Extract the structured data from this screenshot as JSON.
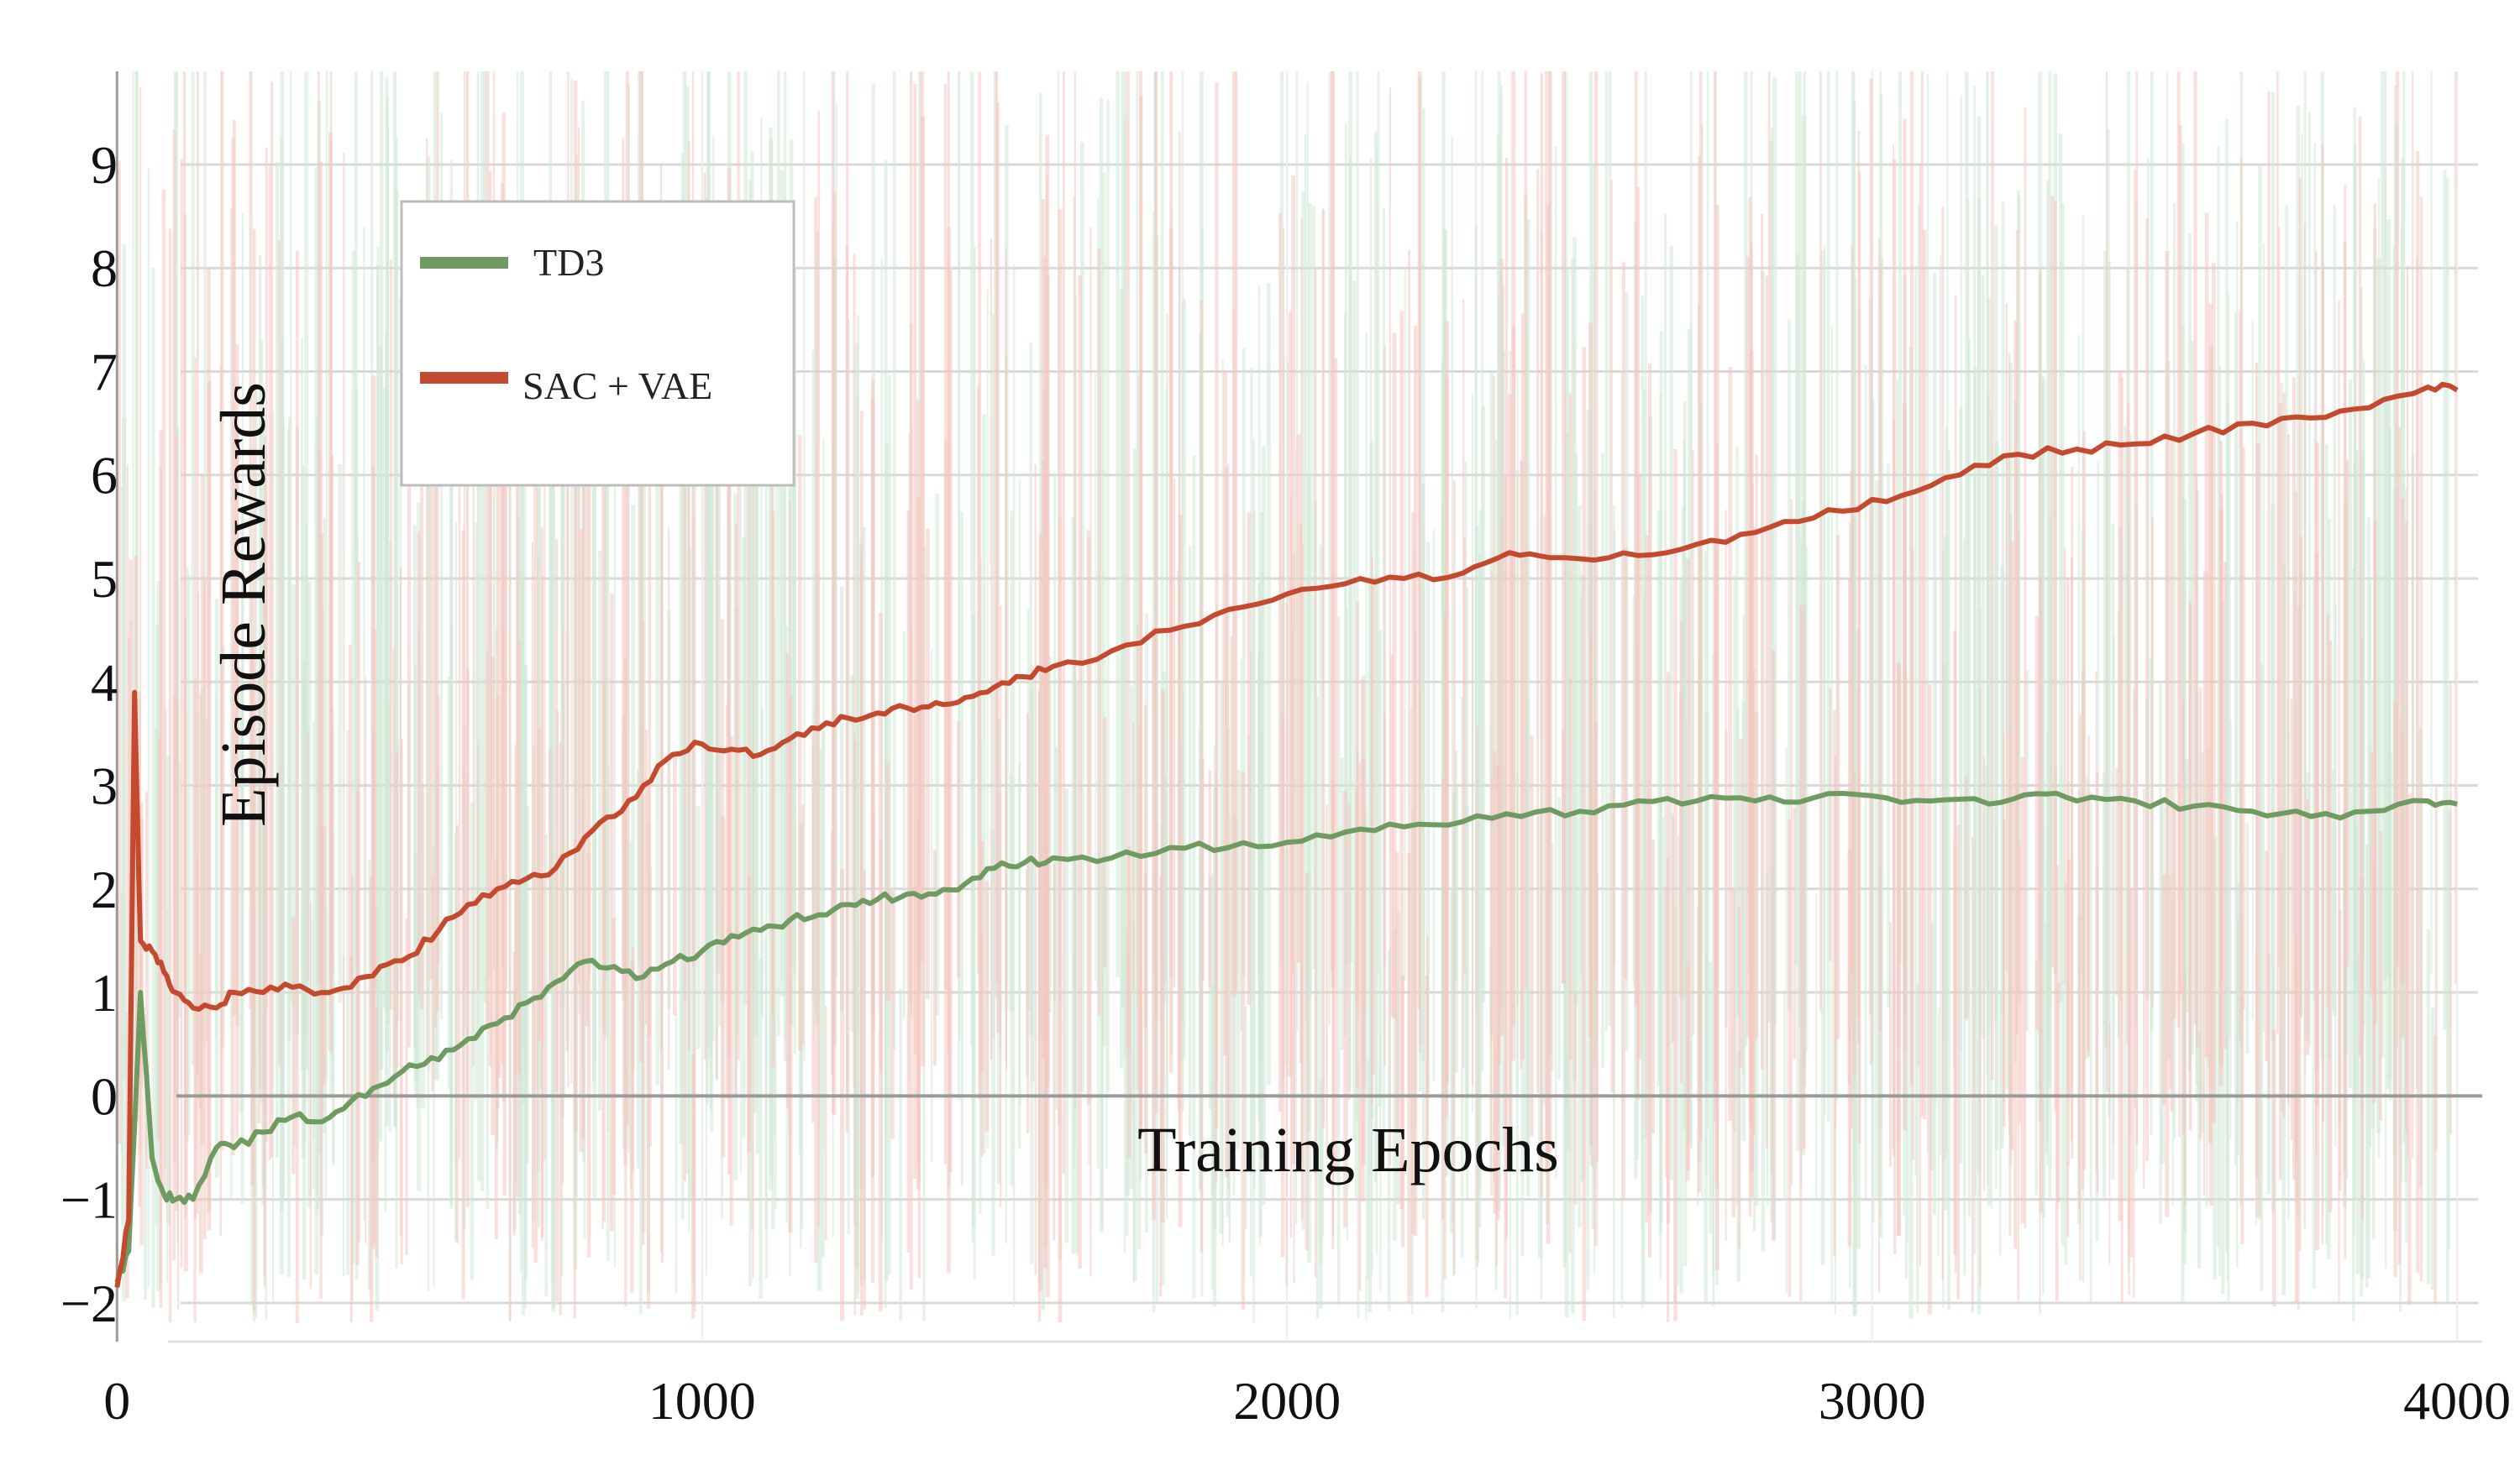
{
  "chart_data": {
    "type": "line",
    "title": "",
    "xlabel": "Training Epochs",
    "ylabel": "Episode Rewards",
    "xlim": [
      -200,
      4050
    ],
    "ylim": [
      -2.35,
      9.9
    ],
    "xticks": [
      0,
      1000,
      2000,
      3000,
      4000
    ],
    "xtick_labels": [
      "0",
      "1000",
      "2000",
      "3000",
      "4000"
    ],
    "yticks": [
      -2,
      -1,
      0,
      1,
      2,
      3,
      4,
      5,
      6,
      7,
      8,
      9
    ],
    "ytick_labels": [
      "−2",
      "−1",
      "0",
      "1",
      "2",
      "3",
      "4",
      "5",
      "6",
      "7",
      "8",
      "9"
    ],
    "grid": true,
    "legend_position": "top-left",
    "colors": {
      "td3": "#6f9a62",
      "sac_vae": "#c44a2f",
      "td3_raw": "#cfe8d6",
      "sac_vae_raw": "#f4c7c0",
      "grid": "#d9d9d9",
      "zero_line": "#9a9a9a"
    },
    "series": [
      {
        "name": "TD3",
        "x": [
          0,
          20,
          40,
          60,
          80,
          100,
          130,
          170,
          200,
          250,
          300,
          350,
          400,
          450,
          500,
          550,
          600,
          650,
          700,
          750,
          800,
          850,
          900,
          950,
          1000,
          1050,
          1100,
          1150,
          1200,
          1250,
          1300,
          1350,
          1400,
          1450,
          1500,
          1550,
          1600,
          1700,
          1800,
          1900,
          2000,
          2100,
          2200,
          2300,
          2400,
          2500,
          2600,
          2700,
          2800,
          2900,
          3000,
          3100,
          3200,
          3280,
          3350,
          3450,
          3550,
          3650,
          3750,
          3850,
          3950,
          4000
        ],
        "values": [
          -1.8,
          -1.5,
          1.0,
          -0.6,
          -0.95,
          -1.0,
          -1.0,
          -0.5,
          -0.5,
          -0.35,
          -0.2,
          -0.25,
          -0.05,
          0.1,
          0.3,
          0.35,
          0.55,
          0.7,
          0.9,
          1.1,
          1.3,
          1.25,
          1.15,
          1.3,
          1.4,
          1.55,
          1.6,
          1.7,
          1.75,
          1.85,
          1.9,
          1.95,
          1.95,
          2.05,
          2.2,
          2.25,
          2.3,
          2.3,
          2.4,
          2.4,
          2.45,
          2.55,
          2.6,
          2.65,
          2.7,
          2.75,
          2.85,
          2.85,
          2.85,
          2.88,
          2.9,
          2.85,
          2.82,
          2.92,
          2.85,
          2.85,
          2.8,
          2.75,
          2.7,
          2.75,
          2.85,
          2.82
        ]
      },
      {
        "name": "SAC + VAE",
        "x": [
          0,
          20,
          30,
          40,
          60,
          80,
          100,
          130,
          170,
          200,
          250,
          300,
          350,
          400,
          450,
          500,
          550,
          600,
          650,
          700,
          750,
          800,
          850,
          900,
          950,
          1000,
          1050,
          1100,
          1150,
          1200,
          1250,
          1300,
          1350,
          1400,
          1450,
          1500,
          1550,
          1600,
          1700,
          1800,
          1900,
          2000,
          2100,
          2200,
          2300,
          2380,
          2450,
          2550,
          2650,
          2750,
          2850,
          2950,
          3050,
          3150,
          3250,
          3350,
          3450,
          3550,
          3650,
          3750,
          3850,
          3950,
          4000
        ],
        "values": [
          -1.85,
          -1.2,
          3.9,
          1.5,
          1.4,
          1.2,
          1.0,
          0.85,
          0.85,
          1.0,
          1.0,
          1.05,
          1.0,
          1.05,
          1.25,
          1.35,
          1.6,
          1.85,
          2.0,
          2.1,
          2.2,
          2.5,
          2.7,
          3.0,
          3.3,
          3.4,
          3.35,
          3.3,
          3.45,
          3.55,
          3.65,
          3.7,
          3.75,
          3.8,
          3.85,
          3.95,
          4.05,
          4.15,
          4.3,
          4.5,
          4.7,
          4.85,
          4.95,
          5.0,
          5.05,
          5.25,
          5.2,
          5.2,
          5.25,
          5.35,
          5.55,
          5.65,
          5.8,
          6.0,
          6.2,
          6.25,
          6.3,
          6.4,
          6.5,
          6.55,
          6.65,
          6.85,
          6.82
        ]
      }
    ]
  }
}
